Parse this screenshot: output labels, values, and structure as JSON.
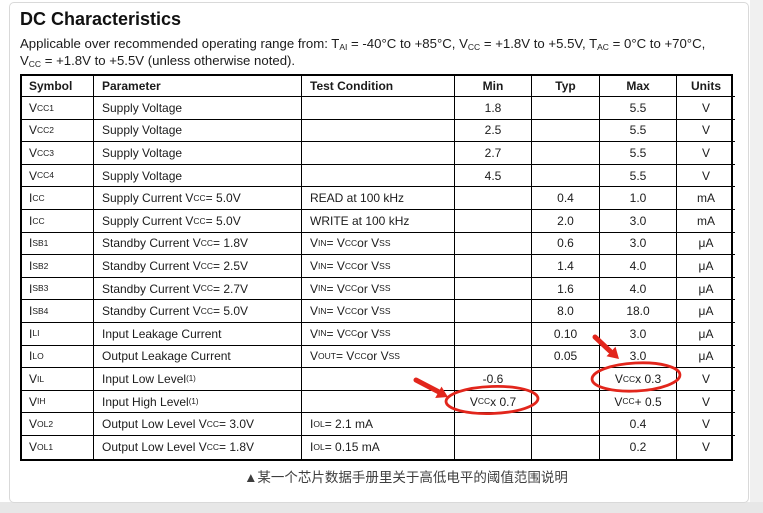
{
  "page": {
    "title": "DC Characteristics",
    "subtitle_line1": "Applicable over recommended operating range from: T<sub>AI</sub> = -40°C to +85°C, V<sub>CC</sub> = +1.8V to +5.5V, T<sub>AC</sub> = 0°C to +70°C,",
    "subtitle_line2": "V<sub>CC</sub> = +1.8V to +5.5V (unless otherwise noted).",
    "caption": "▲某一个芯片数据手册里关于高低电平的阈值范围说明"
  },
  "table": {
    "headers": [
      "Symbol",
      "Parameter",
      "Test Condition",
      "Min",
      "Typ",
      "Max",
      "Units"
    ],
    "rows": [
      [
        "V<sub>CC1</sub>",
        "Supply Voltage",
        "",
        "1.8",
        "",
        "5.5",
        "V"
      ],
      [
        "V<sub>CC2</sub>",
        "Supply Voltage",
        "",
        "2.5",
        "",
        "5.5",
        "V"
      ],
      [
        "V<sub>CC3</sub>",
        "Supply Voltage",
        "",
        "2.7",
        "",
        "5.5",
        "V"
      ],
      [
        "V<sub>CC4</sub>",
        "Supply Voltage",
        "",
        "4.5",
        "",
        "5.5",
        "V"
      ],
      [
        "I<sub>CC</sub>",
        "Supply Current V<sub>CC</sub> = 5.0V",
        "READ at 100 kHz",
        "",
        "0.4",
        "1.0",
        "mA"
      ],
      [
        "I<sub>CC</sub>",
        "Supply Current V<sub>CC</sub> = 5.0V",
        "WRITE at 100 kHz",
        "",
        "2.0",
        "3.0",
        "mA"
      ],
      [
        "I<sub>SB1</sub>",
        "Standby Current V<sub>CC</sub> = 1.8V",
        "V<sub>IN</sub> = V<sub>CC</sub> or V<sub>SS</sub>",
        "",
        "0.6",
        "3.0",
        "μA"
      ],
      [
        "I<sub>SB2</sub>",
        "Standby Current V<sub>CC</sub> = 2.5V",
        "V<sub>IN</sub> = V<sub>CC</sub> or V<sub>SS</sub>",
        "",
        "1.4",
        "4.0",
        "μA"
      ],
      [
        "I<sub>SB3</sub>",
        "Standby Current V<sub>CC</sub> = 2.7V",
        "V<sub>IN</sub> = V<sub>CC</sub> or V<sub>SS</sub>",
        "",
        "1.6",
        "4.0",
        "μA"
      ],
      [
        "I<sub>SB4</sub>",
        "Standby Current V<sub>CC</sub> = 5.0V",
        "V<sub>IN</sub> = V<sub>CC</sub> or V<sub>SS</sub>",
        "",
        "8.0",
        "18.0",
        "μA"
      ],
      [
        "I<sub>LI</sub>",
        "Input Leakage Current",
        "V<sub>IN</sub> = V<sub>CC</sub> or V<sub>SS</sub>",
        "",
        "0.10",
        "3.0",
        "μA"
      ],
      [
        "I<sub>LO</sub>",
        "Output Leakage Current",
        "V<sub>OUT</sub> = V<sub>CC</sub> or V<sub>SS</sub>",
        "",
        "0.05",
        "3.0",
        "μA"
      ],
      [
        "V<sub>IL</sub>",
        "Input Low Level<sup>(1)</sup>",
        "",
        "-0.6",
        "",
        "V<sub>CC</sub> x 0.3",
        "V"
      ],
      [
        "V<sub>IH</sub>",
        "Input High Level<sup>(1)</sup>",
        "",
        "V<sub>CC</sub> x 0.7",
        "",
        "V<sub>CC</sub> + 0.5",
        "V"
      ],
      [
        "V<sub>OL2</sub>",
        "Output Low Level V<sub>CC</sub> = 3.0V",
        "I<sub>OL</sub> = 2.1 mA",
        "",
        "",
        "0.4",
        "V"
      ],
      [
        "V<sub>OL1</sub>",
        "Output Low Level V<sub>CC</sub> = 1.8V",
        "I<sub>OL</sub> = 0.15 mA",
        "",
        "",
        "0.2",
        "V"
      ]
    ]
  },
  "annotations": {
    "color": "#e2261c",
    "circled_values": [
      "VCC x 0.7",
      "VCC x 0.3"
    ]
  }
}
